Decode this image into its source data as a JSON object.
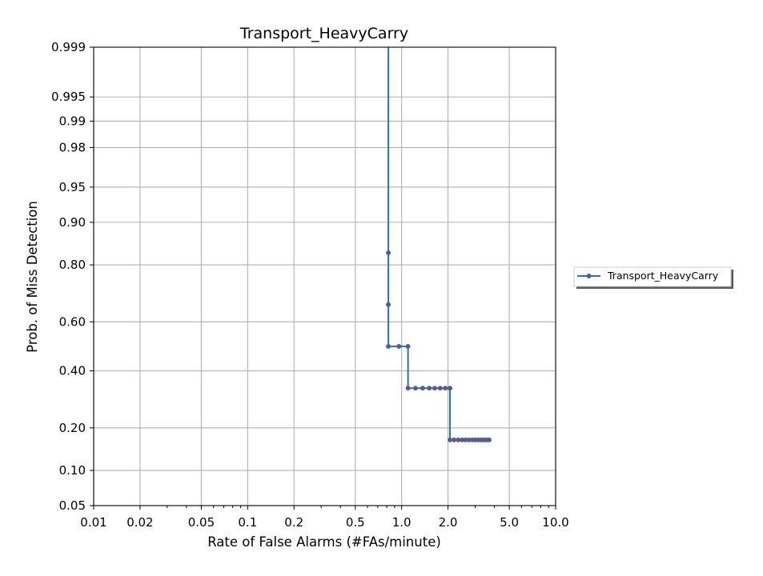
{
  "chart_data": {
    "type": "line",
    "title": "Transport_HeavyCarry",
    "xlabel": "Rate of False Alarms (#FAs/minute)",
    "ylabel": "Prob. of Miss Detection",
    "x_scale": "log",
    "y_scale": "normal-deviate",
    "xlim": [
      0.01,
      10.0
    ],
    "ylim": [
      0.05,
      0.999
    ],
    "x_ticks": [
      0.01,
      0.02,
      0.05,
      0.1,
      0.2,
      0.5,
      1.0,
      2.0,
      5.0,
      10.0
    ],
    "x_tick_labels": [
      "0.01",
      "0.02",
      "0.05",
      "0.1",
      "0.2",
      "0.5",
      "1.0",
      "2.0",
      "5.0",
      "10.0"
    ],
    "y_ticks": [
      0.05,
      0.1,
      0.2,
      0.4,
      0.6,
      0.8,
      0.9,
      0.95,
      0.98,
      0.99,
      0.995,
      0.999
    ],
    "y_tick_labels": [
      "0.05",
      "0.10",
      "0.20",
      "0.40",
      "0.60",
      "0.80",
      "0.90",
      "0.95",
      "0.98",
      "0.99",
      "0.995",
      "0.999"
    ],
    "grid": true,
    "legend_position": "outside right",
    "series": [
      {
        "name": "Transport_HeavyCarry",
        "color": "#1f77b4",
        "marker_color": "#7b4a8e",
        "step": true,
        "points": [
          {
            "x": 0.82,
            "y": 0.999
          },
          {
            "x": 0.82,
            "y": 0.833
          },
          {
            "x": 0.82,
            "y": 0.667
          },
          {
            "x": 0.82,
            "y": 0.5
          },
          {
            "x": 0.96,
            "y": 0.5
          },
          {
            "x": 1.1,
            "y": 0.5
          },
          {
            "x": 1.1,
            "y": 0.333
          },
          {
            "x": 1.23,
            "y": 0.333
          },
          {
            "x": 1.37,
            "y": 0.333
          },
          {
            "x": 1.51,
            "y": 0.333
          },
          {
            "x": 1.64,
            "y": 0.333
          },
          {
            "x": 1.78,
            "y": 0.333
          },
          {
            "x": 1.92,
            "y": 0.333
          },
          {
            "x": 2.06,
            "y": 0.333
          },
          {
            "x": 2.06,
            "y": 0.167
          },
          {
            "x": 2.19,
            "y": 0.167
          },
          {
            "x": 2.33,
            "y": 0.167
          },
          {
            "x": 2.47,
            "y": 0.167
          },
          {
            "x": 2.6,
            "y": 0.167
          },
          {
            "x": 2.74,
            "y": 0.167
          },
          {
            "x": 2.88,
            "y": 0.167
          },
          {
            "x": 3.01,
            "y": 0.167
          },
          {
            "x": 3.15,
            "y": 0.167
          },
          {
            "x": 3.29,
            "y": 0.167
          },
          {
            "x": 3.42,
            "y": 0.167
          },
          {
            "x": 3.56,
            "y": 0.167
          },
          {
            "x": 3.7,
            "y": 0.167
          }
        ]
      }
    ]
  }
}
